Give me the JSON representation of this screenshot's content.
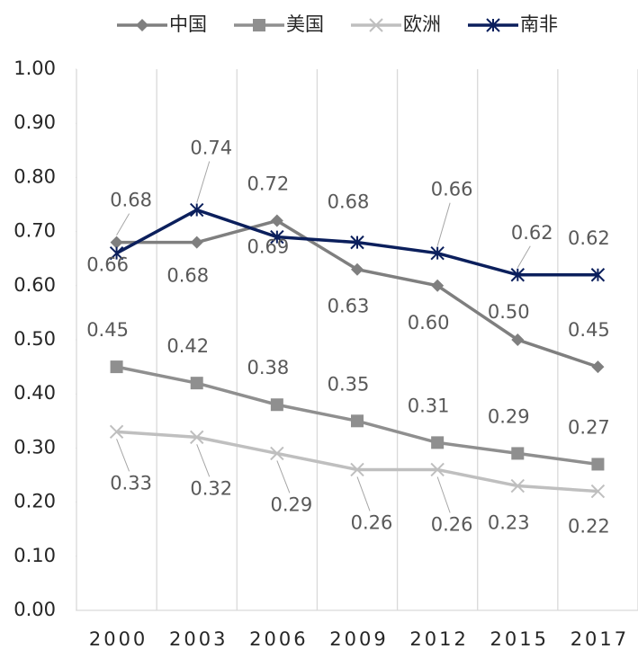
{
  "chart_data": {
    "type": "line",
    "categories": [
      "2000",
      "2003",
      "2006",
      "2009",
      "2012",
      "2015",
      "2017"
    ],
    "series": [
      {
        "name": "中国",
        "color": "#7f7f7f",
        "marker": "diamond",
        "values": [
          0.68,
          0.68,
          0.72,
          0.63,
          0.6,
          0.5,
          0.45
        ],
        "value_labels": [
          "0.68",
          "0.68",
          "0.72",
          "0.63",
          "0.60",
          "0.50",
          "0.45"
        ]
      },
      {
        "name": "美国",
        "color": "#8f8f8f",
        "marker": "square",
        "values": [
          0.45,
          0.42,
          0.38,
          0.35,
          0.31,
          0.29,
          0.27
        ],
        "value_labels": [
          "0.45",
          "0.42",
          "0.38",
          "0.35",
          "0.31",
          "0.29",
          "0.27"
        ]
      },
      {
        "name": "欧洲",
        "color": "#bfbfbf",
        "marker": "x",
        "values": [
          0.33,
          0.32,
          0.29,
          0.26,
          0.26,
          0.23,
          0.22
        ],
        "value_labels": [
          "0.33",
          "0.32",
          "0.29",
          "0.26",
          "0.26",
          "0.23",
          "0.22"
        ]
      },
      {
        "name": "南非",
        "color": "#0b1f5c",
        "marker": "star",
        "values": [
          0.66,
          0.74,
          0.69,
          0.68,
          0.66,
          0.62,
          0.62
        ],
        "value_labels": [
          "0.66",
          "0.74",
          "0.69",
          "0.68",
          "0.66",
          "0.62",
          "0.62"
        ]
      }
    ],
    "ylim": [
      0,
      1
    ],
    "yticks": [
      {
        "value": 0,
        "label": "0.00"
      },
      {
        "value": 0.1,
        "label": "0.10"
      },
      {
        "value": 0.2,
        "label": "0.20"
      },
      {
        "value": 0.3,
        "label": "0.30"
      },
      {
        "value": 0.4,
        "label": "0.40"
      },
      {
        "value": 0.5,
        "label": "0.50"
      },
      {
        "value": 0.6,
        "label": "0.60"
      },
      {
        "value": 0.7,
        "label": "0.70"
      },
      {
        "value": 0.8,
        "label": "0.80"
      },
      {
        "value": 0.9,
        "label": "0.90"
      },
      {
        "value": 1,
        "label": "1.00"
      }
    ],
    "grid": "vertical",
    "legend": "top"
  }
}
